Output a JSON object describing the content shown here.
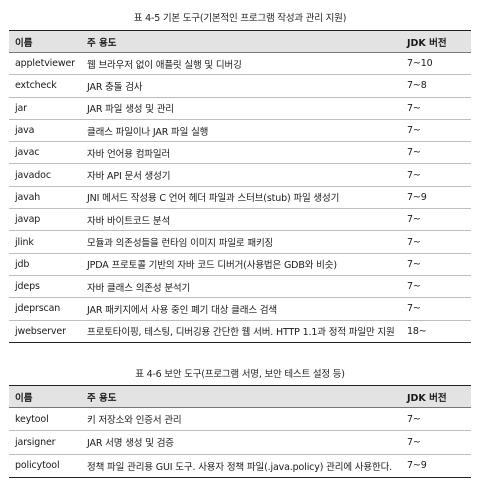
{
  "table1": {
    "caption": "표 4-5 기본 도구(기본적인 프로그램 작성과 관리 지원)",
    "headers": [
      "이름",
      "주 용도",
      "JDK 버전"
    ],
    "rows": [
      [
        "appletviewer",
        "웹 브라우저 없이 애플릿 실행 및 디버깅",
        "7~10"
      ],
      [
        "extcheck",
        "JAR 충돌 검사",
        "7~8"
      ],
      [
        "jar",
        "JAR 파일 생성 및 관리",
        "7~"
      ],
      [
        "java",
        "클래스 파일이나 JAR 파일 실행",
        "7~"
      ],
      [
        "javac",
        "자바 언어용 컴파일러",
        "7~"
      ],
      [
        "javadoc",
        "자바 API 문서 생성기",
        "7~"
      ],
      [
        "javah",
        "JNI 메서드 작성용 C 언어 헤더 파일과 스터브(stub) 파일 생성기",
        "7~9"
      ],
      [
        "javap",
        "자바 바이트코드 분석",
        "7~"
      ],
      [
        "jlink",
        "모듈과 의존성들을 런타임 이미지 파일로 패키징",
        "7~"
      ],
      [
        "jdb",
        "JPDA 프로토콜 기반의 자바 코드 디버거(사용법은 GDB와 비슷)",
        "7~"
      ],
      [
        "jdeps",
        "자바 클래스 의존성 분석기",
        "7~"
      ],
      [
        "jdeprscan",
        "JAR 패키지에서 사용 중인 폐기 대상 클래스 검색",
        "7~"
      ],
      [
        "jwebserver",
        "프로토타이핑, 테스팅, 디버깅용 간단한 웹 서버. HTTP 1.1과 정적 파일만 지원",
        "18~"
      ]
    ]
  },
  "table2": {
    "caption": "표 4-6 보안 도구(프로그램 서명, 보안 테스트 설정 등)",
    "headers": [
      "이름",
      "주 용도",
      "JDK 버전"
    ],
    "rows": [
      [
        "keytool",
        "키 저장소와 인증서 관리",
        "7~"
      ],
      [
        "jarsigner",
        "JAR 서명 생성 및 검증",
        "7~"
      ],
      [
        "policytool",
        "정책 파일 관리용 GUI 도구. 사용자 정책 파일(.java.policy) 관리에 사용한다.",
        "7~9"
      ]
    ]
  }
}
